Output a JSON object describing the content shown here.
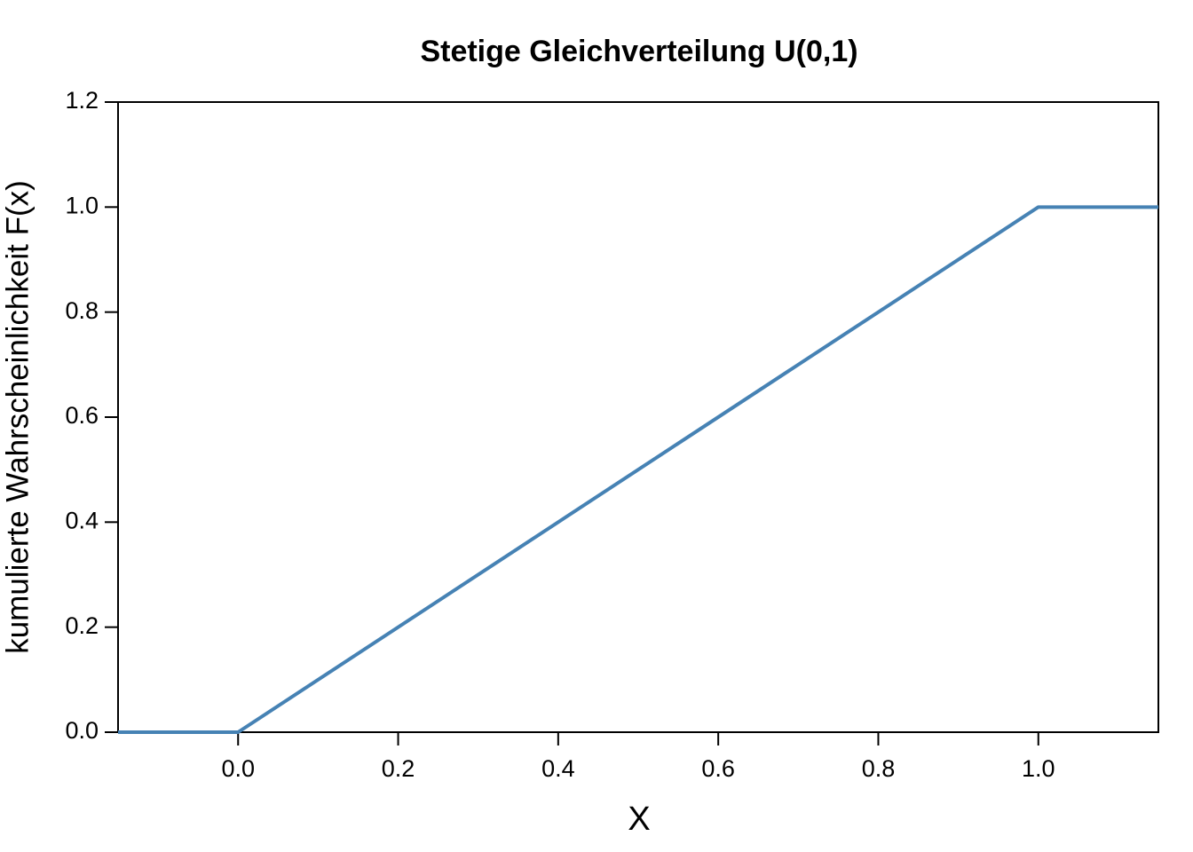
{
  "chart_data": {
    "type": "line",
    "title": "Stetige Gleichverteilung U(0,1)",
    "x_label": "X",
    "y_label": "kumulierte Wahrscheinlichkeit F(x)",
    "x": [
      -0.15,
      0,
      1,
      1.15
    ],
    "values": [
      0,
      0,
      1,
      1
    ],
    "color": "#4682b4",
    "xlim": [
      -0.15,
      1.15
    ],
    "ylim": [
      0,
      1.2
    ],
    "xticks": [
      {
        "value": 0,
        "label": "0.0"
      },
      0.2,
      0.4,
      0.6,
      0.8,
      {
        "value": 1,
        "label": "1.0"
      }
    ],
    "yticks": [
      {
        "value": 0,
        "label": "0.0"
      },
      0.2,
      0.4,
      0.6,
      0.8,
      {
        "value": 1,
        "label": "1.0"
      },
      1.2
    ],
    "grid": false
  }
}
